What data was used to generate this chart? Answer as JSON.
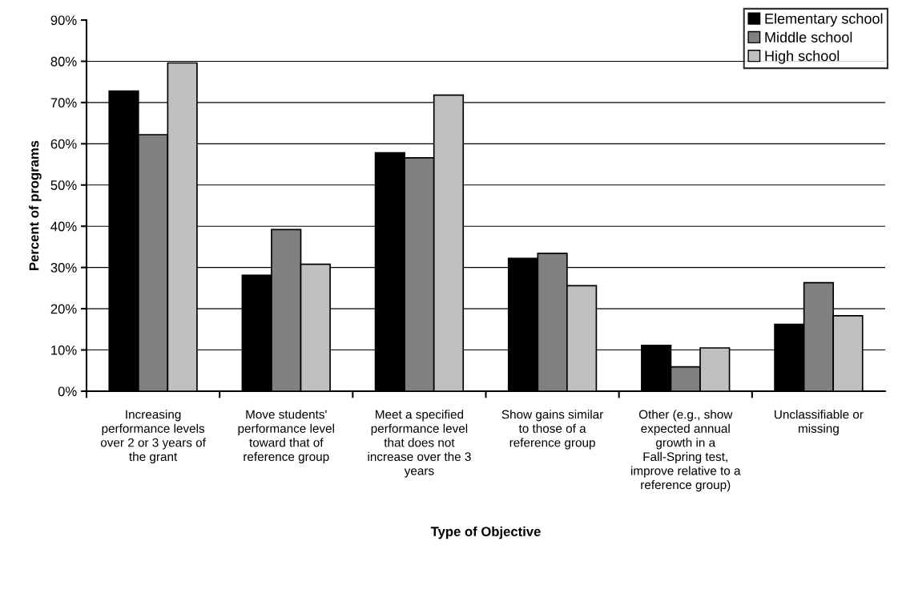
{
  "chart_data": {
    "type": "bar",
    "xlabel": "Type of Objective",
    "ylabel": "Percent of programs",
    "categories": [
      "Increasing performance levels over 2 or 3 years of the grant",
      "Move students' performance level toward that of reference group",
      "Meet a specified performance level that does not increase over the 3 years",
      "Show gains similar to those of a reference group",
      "Other (e.g., show expected annual growth in a Fall-Spring test, improve relative to a reference group)",
      "Unclassifiable or missing"
    ],
    "series": [
      {
        "name": "Elementary school",
        "color": "#000000",
        "values": [
          72.8,
          28.1,
          57.8,
          32.2,
          11.1,
          16.2
        ]
      },
      {
        "name": "Middle school",
        "color": "#808080",
        "values": [
          62.2,
          39.2,
          56.6,
          33.4,
          5.9,
          26.3
        ]
      },
      {
        "name": "High school",
        "color": "#c0c0c0",
        "values": [
          79.6,
          30.8,
          71.8,
          25.6,
          10.5,
          18.3
        ]
      }
    ],
    "ylim": [
      0,
      90
    ],
    "yticks": [
      {
        "value": 0,
        "label": "0%"
      },
      {
        "value": 10,
        "label": "10%"
      },
      {
        "value": 20,
        "label": "20%"
      },
      {
        "value": 30,
        "label": "30%"
      },
      {
        "value": 40,
        "label": "40%"
      },
      {
        "value": 50,
        "label": "50%"
      },
      {
        "value": 60,
        "label": "60%"
      },
      {
        "value": 70,
        "label": "70%"
      },
      {
        "value": 80,
        "label": "80%"
      },
      {
        "value": 90,
        "label": "90%"
      }
    ],
    "grid": "y",
    "legend": "top right"
  }
}
